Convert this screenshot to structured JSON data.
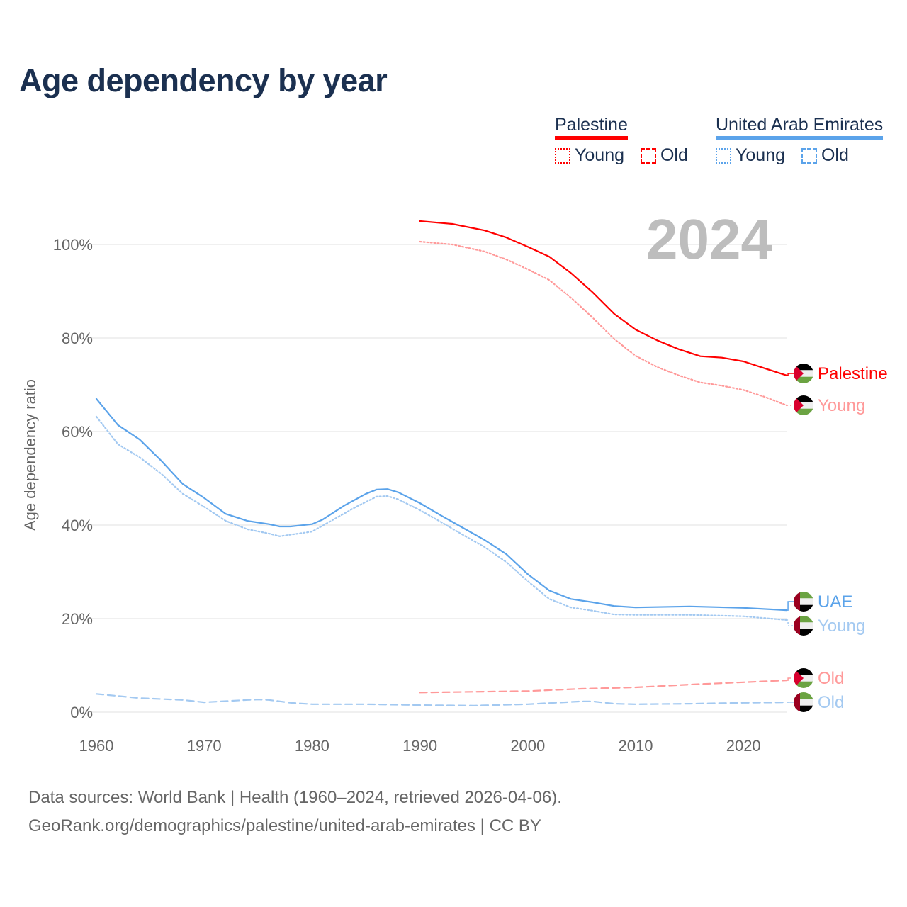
{
  "title": "Age dependency by year",
  "year_label": "2024",
  "legend": [
    {
      "name": "Palestine",
      "color": "#ff0000",
      "items": [
        "Young",
        "Old"
      ]
    },
    {
      "name": "United Arab Emirates",
      "color": "#5ba3ea",
      "items": [
        "Young",
        "Old"
      ]
    }
  ],
  "source_lines": [
    "Data sources: World Bank | Health (1960–2024, retrieved 2026-04-06).",
    "GeoRank.org/demographics/palestine/united-arab-emirates | CC BY"
  ],
  "chart_data": {
    "type": "line",
    "title": "Age dependency by year",
    "xlabel": "",
    "ylabel": "Age dependency ratio",
    "xlim": [
      1960,
      2024
    ],
    "ylim": [
      0,
      110
    ],
    "xticks": [
      1960,
      1970,
      1980,
      1990,
      2000,
      2010,
      2020
    ],
    "xtick_labels": [
      "1960",
      "1970",
      "1980",
      "1990",
      "2000",
      "2010",
      "2020"
    ],
    "yticks": [
      0,
      20,
      40,
      60,
      80,
      100
    ],
    "ytick_labels": [
      "0%",
      "20%",
      "40%",
      "60%",
      "80%",
      "100%"
    ],
    "grid": true,
    "series": [
      {
        "name": "Palestine",
        "end_label": "Palestine",
        "country": "palestine",
        "color": "#ff0000",
        "dash": "solid",
        "x": [
          1990,
          1993,
          1996,
          1998,
          2000,
          2002,
          2004,
          2006,
          2008,
          2010,
          2012,
          2014,
          2016,
          2018,
          2020,
          2022,
          2024
        ],
        "y": [
          105,
          104.4,
          103,
          101.5,
          99.5,
          97.4,
          93.9,
          89.8,
          85.2,
          81.8,
          79.5,
          77.6,
          76.1,
          75.8,
          75,
          73.5,
          72
        ]
      },
      {
        "name": "Palestine Young",
        "end_label": "Young",
        "country": "palestine",
        "color": "#ff9999",
        "dash": "dotted",
        "x": [
          1990,
          1993,
          1996,
          1998,
          2000,
          2002,
          2004,
          2006,
          2008,
          2010,
          2012,
          2014,
          2016,
          2018,
          2020,
          2022,
          2024
        ],
        "y": [
          100.6,
          100,
          98.5,
          96.8,
          94.7,
          92.4,
          88.6,
          84.4,
          79.8,
          76.2,
          73.8,
          72,
          70.5,
          69.8,
          68.9,
          67.4,
          65.6
        ]
      },
      {
        "name": "UAE",
        "end_label": "UAE",
        "country": "uae",
        "color": "#5ba3ea",
        "dash": "solid",
        "x": [
          1960,
          1962,
          1964,
          1966,
          1968,
          1970,
          1972,
          1974,
          1976,
          1977,
          1978,
          1980,
          1981,
          1983,
          1985,
          1986,
          1987,
          1988,
          1990,
          1992,
          1994,
          1996,
          1998,
          2000,
          2002,
          2004,
          2006,
          2008,
          2010,
          2015,
          2020,
          2024
        ],
        "y": [
          67,
          61.4,
          58.3,
          53.8,
          48.8,
          45.8,
          42.4,
          40.9,
          40.2,
          39.7,
          39.7,
          40.2,
          41.2,
          44.2,
          46.7,
          47.6,
          47.7,
          47,
          44.7,
          42,
          39.4,
          36.8,
          33.8,
          29.5,
          26,
          24.2,
          23.5,
          22.7,
          22.4,
          22.6,
          22.3,
          21.8
        ]
      },
      {
        "name": "UAE Young",
        "end_label": "Young",
        "country": "uae",
        "color": "#a3c9f1",
        "dash": "dotted",
        "x": [
          1960,
          1962,
          1964,
          1966,
          1968,
          1970,
          1972,
          1974,
          1976,
          1977,
          1980,
          1982,
          1984,
          1986,
          1987,
          1988,
          1990,
          1992,
          1994,
          1996,
          1998,
          2000,
          2002,
          2004,
          2006,
          2008,
          2010,
          2015,
          2020,
          2024
        ],
        "y": [
          63.2,
          57.3,
          54.5,
          51,
          46.7,
          43.9,
          40.9,
          39.1,
          38.2,
          37.6,
          38.6,
          41.2,
          43.8,
          46.1,
          46.2,
          45.5,
          43.2,
          40.6,
          37.9,
          35.3,
          32.1,
          28,
          24.2,
          22.4,
          21.7,
          20.9,
          20.8,
          20.8,
          20.5,
          19.7
        ]
      },
      {
        "name": "Palestine Old",
        "end_label": "Old",
        "country": "palestine",
        "color": "#ff9999",
        "dash": "dashed",
        "x": [
          1990,
          2000,
          2005,
          2010,
          2015,
          2020,
          2024
        ],
        "y": [
          4.2,
          4.5,
          5.0,
          5.3,
          5.9,
          6.4,
          6.8
        ]
      },
      {
        "name": "UAE Old",
        "end_label": "Old",
        "country": "uae",
        "color": "#a3c9f1",
        "dash": "dashed",
        "x": [
          1960,
          1964,
          1968,
          1970,
          1974,
          1975,
          1976,
          1978,
          1980,
          1985,
          1990,
          1995,
          2000,
          2005,
          2006,
          2008,
          2010,
          2015,
          2020,
          2024
        ],
        "y": [
          3.9,
          3.0,
          2.6,
          2.1,
          2.6,
          2.7,
          2.6,
          2.0,
          1.7,
          1.7,
          1.5,
          1.4,
          1.7,
          2.3,
          2.3,
          1.8,
          1.7,
          1.8,
          2.0,
          2.1
        ]
      }
    ]
  }
}
